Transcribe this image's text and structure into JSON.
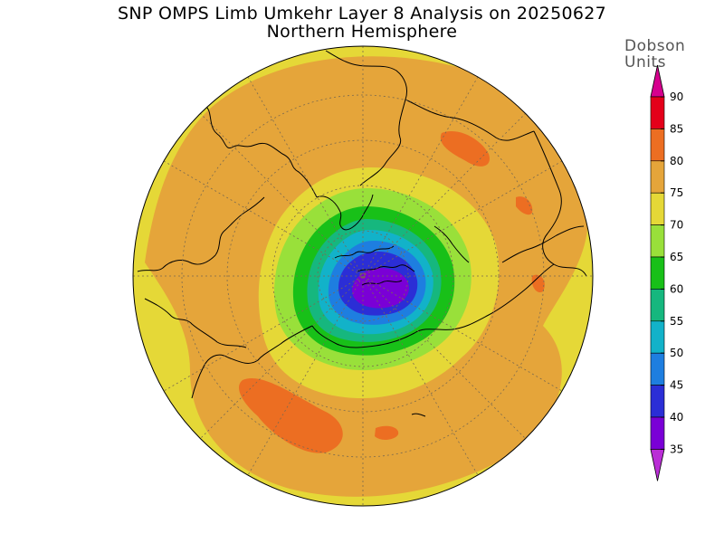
{
  "title": {
    "line1": "SNP OMPS Limb Umkehr Layer 8 Analysis on 20250627",
    "line2": "Northern Hemisphere"
  },
  "colorbar": {
    "units_line1": "Dobson",
    "units_line2": "Units",
    "ticks": [
      "90",
      "85",
      "80",
      "75",
      "70",
      "65",
      "60",
      "55",
      "50",
      "45",
      "40",
      "35"
    ],
    "band_colors": [
      "#d6008e",
      "#e4001a",
      "#ec6e22",
      "#e5a53a",
      "#e5d837",
      "#99e03a",
      "#18c018",
      "#16b77e",
      "#12b2c9",
      "#1e7ee0",
      "#2b2ed6",
      "#7a00d6",
      "#ba2ed6"
    ]
  },
  "map": {
    "projection": "polar-stereographic-north",
    "colors": {
      "ocean_bg": "#e5d837",
      "c75": "#e5a53a",
      "c80": "#ec6e22",
      "c70": "#e5d837",
      "c65": "#99e03a",
      "c60": "#18c018",
      "c55": "#16b77e",
      "c50": "#12b2c9",
      "c45": "#1e7ee0",
      "c40": "#2b2ed6",
      "c35": "#7a00d6"
    }
  }
}
